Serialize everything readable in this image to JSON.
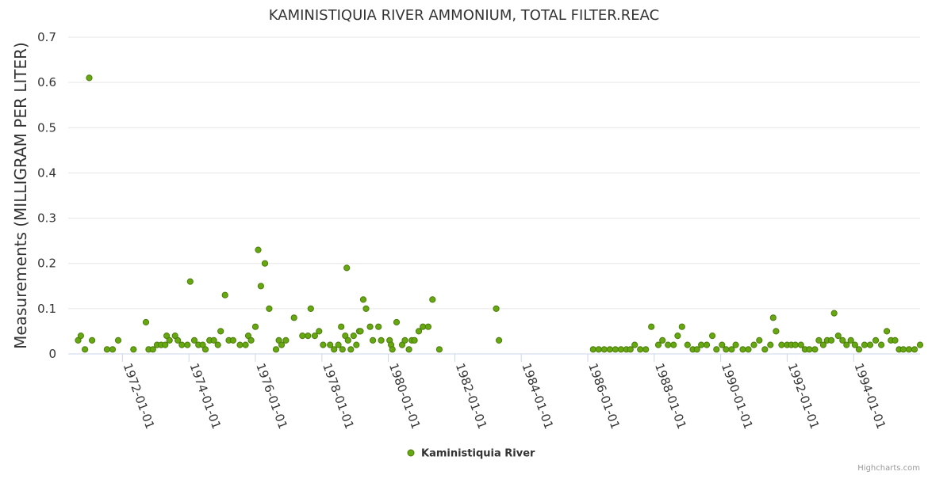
{
  "chart_data": {
    "type": "scatter",
    "title": "KAMINISTIQUIA RIVER AMMONIUM, TOTAL FILTER.REAC",
    "xlabel": "",
    "ylabel": "Measurements (MILLIGRAM PER LITER)",
    "ylim": [
      0,
      0.7
    ],
    "yticks": [
      "0",
      "0.1",
      "0.2",
      "0.3",
      "0.4",
      "0.5",
      "0.6",
      "0.7"
    ],
    "xlim": [
      "1970-05-15",
      "1996-01-01"
    ],
    "xticks": [
      "1972-01-01",
      "1974-01-01",
      "1976-01-01",
      "1978-01-01",
      "1980-01-01",
      "1982-01-01",
      "1984-01-01",
      "1986-01-01",
      "1988-01-01",
      "1990-01-01",
      "1992-01-01",
      "1994-01-01"
    ],
    "grid": true,
    "legend_position": "bottom-center",
    "marker_color": "#7cb5ec",
    "marker_fill": "#66a80f",
    "marker_stroke": "#4d7c0f",
    "credits": "Highcharts.com",
    "series": [
      {
        "name": "Kaministiquia River",
        "points": [
          [
            "1970-09-01",
            0.03
          ],
          [
            "1970-10-01",
            0.04
          ],
          [
            "1970-11-15",
            0.01
          ],
          [
            "1971-01-01",
            0.61
          ],
          [
            "1971-02-01",
            0.03
          ],
          [
            "1971-07-15",
            0.01
          ],
          [
            "1971-09-15",
            0.01
          ],
          [
            "1971-11-15",
            0.03
          ],
          [
            "1972-05-01",
            0.01
          ],
          [
            "1972-09-15",
            0.07
          ],
          [
            "1972-10-15",
            0.01
          ],
          [
            "1972-12-01",
            0.01
          ],
          [
            "1973-01-15",
            0.02
          ],
          [
            "1973-03-01",
            0.02
          ],
          [
            "1973-04-15",
            0.02
          ],
          [
            "1973-05-01",
            0.04
          ],
          [
            "1973-06-01",
            0.03
          ],
          [
            "1973-08-01",
            0.04
          ],
          [
            "1973-09-01",
            0.03
          ],
          [
            "1973-10-15",
            0.02
          ],
          [
            "1973-12-15",
            0.02
          ],
          [
            "1974-01-15",
            0.16
          ],
          [
            "1974-03-01",
            0.03
          ],
          [
            "1974-04-15",
            0.02
          ],
          [
            "1974-06-01",
            0.02
          ],
          [
            "1974-07-01",
            0.01
          ],
          [
            "1974-08-15",
            0.03
          ],
          [
            "1974-10-01",
            0.03
          ],
          [
            "1974-11-15",
            0.02
          ],
          [
            "1974-12-15",
            0.05
          ],
          [
            "1975-02-01",
            0.13
          ],
          [
            "1975-03-15",
            0.03
          ],
          [
            "1975-05-01",
            0.03
          ],
          [
            "1975-07-15",
            0.02
          ],
          [
            "1975-09-15",
            0.02
          ],
          [
            "1975-10-15",
            0.04
          ],
          [
            "1975-11-15",
            0.03
          ],
          [
            "1976-01-01",
            0.06
          ],
          [
            "1976-02-01",
            0.23
          ],
          [
            "1976-03-01",
            0.15
          ],
          [
            "1976-04-15",
            0.2
          ],
          [
            "1976-06-01",
            0.1
          ],
          [
            "1976-08-15",
            0.01
          ],
          [
            "1976-09-15",
            0.03
          ],
          [
            "1976-10-15",
            0.02
          ],
          [
            "1976-12-01",
            0.03
          ],
          [
            "1977-03-01",
            0.08
          ],
          [
            "1977-06-01",
            0.04
          ],
          [
            "1977-08-01",
            0.04
          ],
          [
            "1977-09-01",
            0.1
          ],
          [
            "1977-10-15",
            0.04
          ],
          [
            "1977-12-01",
            0.05
          ],
          [
            "1978-01-15",
            0.02
          ],
          [
            "1978-04-01",
            0.02
          ],
          [
            "1978-05-15",
            0.01
          ],
          [
            "1978-07-01",
            0.02
          ],
          [
            "1978-08-01",
            0.06
          ],
          [
            "1978-08-15",
            0.01
          ],
          [
            "1978-09-15",
            0.04
          ],
          [
            "1978-10-01",
            0.19
          ],
          [
            "1978-10-15",
            0.03
          ],
          [
            "1978-11-15",
            0.01
          ],
          [
            "1978-12-15",
            0.04
          ],
          [
            "1979-01-15",
            0.02
          ],
          [
            "1979-02-15",
            0.05
          ],
          [
            "1979-03-01",
            0.05
          ],
          [
            "1979-04-01",
            0.12
          ],
          [
            "1979-05-01",
            0.1
          ],
          [
            "1979-06-15",
            0.06
          ],
          [
            "1979-07-15",
            0.03
          ],
          [
            "1979-09-15",
            0.06
          ],
          [
            "1979-10-15",
            0.03
          ],
          [
            "1980-01-15",
            0.03
          ],
          [
            "1980-02-01",
            0.02
          ],
          [
            "1980-02-15",
            0.01
          ],
          [
            "1980-04-01",
            0.07
          ],
          [
            "1980-06-01",
            0.02
          ],
          [
            "1980-07-01",
            0.03
          ],
          [
            "1980-08-15",
            0.01
          ],
          [
            "1980-09-15",
            0.03
          ],
          [
            "1980-10-15",
            0.03
          ],
          [
            "1980-12-01",
            0.05
          ],
          [
            "1981-01-15",
            0.06
          ],
          [
            "1981-03-15",
            0.06
          ],
          [
            "1981-05-01",
            0.12
          ],
          [
            "1981-07-15",
            0.01
          ],
          [
            "1983-04-01",
            0.1
          ],
          [
            "1983-05-01",
            0.03
          ],
          [
            "1986-03-01",
            0.01
          ],
          [
            "1986-05-01",
            0.01
          ],
          [
            "1986-07-01",
            0.01
          ],
          [
            "1986-09-01",
            0.01
          ],
          [
            "1986-11-01",
            0.01
          ],
          [
            "1987-01-01",
            0.01
          ],
          [
            "1987-03-01",
            0.01
          ],
          [
            "1987-04-15",
            0.01
          ],
          [
            "1987-06-01",
            0.02
          ],
          [
            "1987-08-01",
            0.01
          ],
          [
            "1987-10-01",
            0.01
          ],
          [
            "1987-12-01",
            0.06
          ],
          [
            "1988-02-15",
            0.02
          ],
          [
            "1988-04-01",
            0.03
          ],
          [
            "1988-06-01",
            0.02
          ],
          [
            "1988-08-01",
            0.02
          ],
          [
            "1988-09-15",
            0.04
          ],
          [
            "1988-11-01",
            0.06
          ],
          [
            "1989-01-01",
            0.02
          ],
          [
            "1989-03-01",
            0.01
          ],
          [
            "1989-04-15",
            0.01
          ],
          [
            "1989-06-01",
            0.02
          ],
          [
            "1989-08-01",
            0.02
          ],
          [
            "1989-10-01",
            0.04
          ],
          [
            "1989-11-15",
            0.01
          ],
          [
            "1990-01-15",
            0.02
          ],
          [
            "1990-03-01",
            0.01
          ],
          [
            "1990-05-01",
            0.01
          ],
          [
            "1990-06-15",
            0.02
          ],
          [
            "1990-09-01",
            0.01
          ],
          [
            "1990-11-01",
            0.01
          ],
          [
            "1991-01-01",
            0.02
          ],
          [
            "1991-03-01",
            0.03
          ],
          [
            "1991-05-01",
            0.01
          ],
          [
            "1991-07-01",
            0.02
          ],
          [
            "1991-08-01",
            0.08
          ],
          [
            "1991-09-01",
            0.05
          ],
          [
            "1991-11-01",
            0.02
          ],
          [
            "1992-01-01",
            0.02
          ],
          [
            "1992-02-15",
            0.02
          ],
          [
            "1992-04-01",
            0.02
          ],
          [
            "1992-06-01",
            0.02
          ],
          [
            "1992-07-15",
            0.01
          ],
          [
            "1992-09-01",
            0.01
          ],
          [
            "1992-11-01",
            0.01
          ],
          [
            "1992-12-15",
            0.03
          ],
          [
            "1993-02-01",
            0.02
          ],
          [
            "1993-03-15",
            0.03
          ],
          [
            "1993-05-01",
            0.03
          ],
          [
            "1993-06-01",
            0.09
          ],
          [
            "1993-07-15",
            0.04
          ],
          [
            "1993-09-01",
            0.03
          ],
          [
            "1993-10-15",
            0.02
          ],
          [
            "1993-12-01",
            0.03
          ],
          [
            "1994-01-15",
            0.02
          ],
          [
            "1994-03-01",
            0.01
          ],
          [
            "1994-05-01",
            0.02
          ],
          [
            "1994-07-01",
            0.02
          ],
          [
            "1994-09-01",
            0.03
          ],
          [
            "1994-11-01",
            0.02
          ],
          [
            "1995-01-01",
            0.05
          ],
          [
            "1995-02-15",
            0.03
          ],
          [
            "1995-04-01",
            0.03
          ],
          [
            "1995-05-15",
            0.01
          ],
          [
            "1995-07-01",
            0.01
          ],
          [
            "1995-09-01",
            0.01
          ],
          [
            "1995-11-01",
            0.01
          ],
          [
            "1996-01-01",
            0.02
          ]
        ]
      }
    ]
  }
}
